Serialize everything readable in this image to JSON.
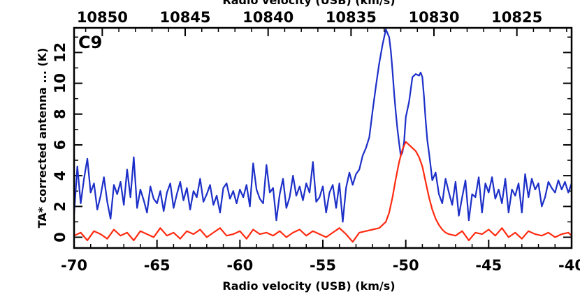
{
  "chart_data": {
    "type": "line",
    "panel_label": "C9",
    "xlabel": "Radio velocity (USB) (km/s)",
    "top_xlabel": "Radio velocity (USB) (km/s)",
    "ylabel": "TA*  corrected antenna ... (K)",
    "xlim": [
      -70,
      -40
    ],
    "ylim": [
      -0.7,
      13.6
    ],
    "x_ticks": [
      -70,
      -65,
      -60,
      -55,
      -50,
      -45,
      -40
    ],
    "x_tick_labels": [
      "-70",
      "-65",
      "-60",
      "-55",
      "-50",
      "-45",
      "-40"
    ],
    "y_ticks": [
      0,
      2,
      4,
      6,
      8,
      10,
      12
    ],
    "y_tick_labels": [
      "0",
      "2",
      "4",
      "6",
      "8",
      "10",
      "12"
    ],
    "top_ticks": [
      10850,
      10845,
      10840,
      10835,
      10830,
      10825
    ],
    "top_tick_labels": [
      "10850",
      "10845",
      "10840",
      "10835",
      "10830",
      "10825"
    ],
    "top_axis": {
      "ref_velocity": -50,
      "ref_value": 10831.7,
      "per_velocity": -1
    },
    "series": [
      {
        "name": "blue",
        "color": "#1c2fc8",
        "x": [
          -70.0,
          -69.8,
          -69.6,
          -69.4,
          -69.2,
          -69.0,
          -68.8,
          -68.6,
          -68.4,
          -68.2,
          -68.0,
          -67.8,
          -67.6,
          -67.4,
          -67.2,
          -67.0,
          -66.8,
          -66.6,
          -66.4,
          -66.2,
          -66.0,
          -65.8,
          -65.6,
          -65.4,
          -65.2,
          -65.0,
          -64.8,
          -64.6,
          -64.4,
          -64.2,
          -64.0,
          -63.8,
          -63.6,
          -63.4,
          -63.2,
          -63.0,
          -62.8,
          -62.6,
          -62.4,
          -62.2,
          -62.0,
          -61.8,
          -61.6,
          -61.4,
          -61.2,
          -61.0,
          -60.8,
          -60.6,
          -60.4,
          -60.2,
          -60.0,
          -59.8,
          -59.6,
          -59.4,
          -59.2,
          -59.0,
          -58.8,
          -58.6,
          -58.4,
          -58.2,
          -58.0,
          -57.8,
          -57.6,
          -57.4,
          -57.2,
          -57.0,
          -56.8,
          -56.6,
          -56.4,
          -56.2,
          -56.0,
          -55.8,
          -55.6,
          -55.4,
          -55.2,
          -55.0,
          -54.8,
          -54.6,
          -54.4,
          -54.2,
          -54.0,
          -53.8,
          -53.6,
          -53.4,
          -53.2,
          -53.0,
          -52.8,
          -52.6,
          -52.4,
          -52.2,
          -52.0,
          -51.8,
          -51.6,
          -51.4,
          -51.2,
          -51.0,
          -50.9,
          -50.8,
          -50.7,
          -50.6,
          -50.5,
          -50.4,
          -50.3,
          -50.2,
          -50.1,
          -50.0,
          -49.8,
          -49.6,
          -49.4,
          -49.2,
          -49.1,
          -49.0,
          -48.9,
          -48.8,
          -48.7,
          -48.6,
          -48.5,
          -48.4,
          -48.2,
          -48.0,
          -47.8,
          -47.6,
          -47.4,
          -47.2,
          -47.0,
          -46.8,
          -46.6,
          -46.4,
          -46.2,
          -46.0,
          -45.8,
          -45.6,
          -45.4,
          -45.2,
          -45.0,
          -44.8,
          -44.6,
          -44.4,
          -44.2,
          -44.0,
          -43.8,
          -43.6,
          -43.4,
          -43.2,
          -43.0,
          -42.8,
          -42.6,
          -42.4,
          -42.2,
          -42.0,
          -41.8,
          -41.6,
          -41.4,
          -41.2,
          -41.0,
          -40.8,
          -40.6,
          -40.4,
          -40.2,
          -40.0
        ],
        "y": [
          1.5,
          4.6,
          2.2,
          3.8,
          5.1,
          2.9,
          3.5,
          1.8,
          2.7,
          3.9,
          2.3,
          1.2,
          3.4,
          2.8,
          3.6,
          2.1,
          4.4,
          2.6,
          5.2,
          1.9,
          3.1,
          2.4,
          1.6,
          3.3,
          2.5,
          2.2,
          3.0,
          1.7,
          2.9,
          3.5,
          1.9,
          2.8,
          3.6,
          2.4,
          3.2,
          1.8,
          3.0,
          2.6,
          3.8,
          2.3,
          2.8,
          3.4,
          2.1,
          2.7,
          1.6,
          3.2,
          3.5,
          2.5,
          3.0,
          2.2,
          3.1,
          2.6,
          3.4,
          2.0,
          4.8,
          3.1,
          2.5,
          2.2,
          4.7,
          2.9,
          3.2,
          1.1,
          2.8,
          3.8,
          1.9,
          2.6,
          4.0,
          2.7,
          3.3,
          2.4,
          3.5,
          2.9,
          4.9,
          2.3,
          2.6,
          3.3,
          1.6,
          2.9,
          3.4,
          1.9,
          3.5,
          1.0,
          3.2,
          4.2,
          3.4,
          4.1,
          4.4,
          5.3,
          5.8,
          6.5,
          8.2,
          9.8,
          11.3,
          12.5,
          13.5,
          13.0,
          12.1,
          10.8,
          9.3,
          8.1,
          7.0,
          6.1,
          5.3,
          5.5,
          6.2,
          7.8,
          8.8,
          10.4,
          10.6,
          10.5,
          10.7,
          10.4,
          9.1,
          7.6,
          6.3,
          5.5,
          4.6,
          3.7,
          4.2,
          2.8,
          2.2,
          3.8,
          2.9,
          2.1,
          3.6,
          1.4,
          2.6,
          3.7,
          1.1,
          2.8,
          2.6,
          3.9,
          1.6,
          3.5,
          2.9,
          3.9,
          2.5,
          3.1,
          2.2,
          3.8,
          1.6,
          3.1,
          2.7,
          3.5,
          1.6,
          4.1,
          2.6,
          3.8,
          3.1,
          3.5,
          2.0,
          2.6,
          3.6,
          3.2,
          2.9,
          3.7,
          3.1,
          3.6,
          2.9,
          3.5
        ]
      },
      {
        "name": "red",
        "color": "#ff2a10",
        "x": [
          -70.0,
          -69.6,
          -69.2,
          -68.8,
          -68.4,
          -68.0,
          -67.6,
          -67.2,
          -66.8,
          -66.4,
          -66.0,
          -65.6,
          -65.2,
          -64.8,
          -64.4,
          -64.0,
          -63.6,
          -63.2,
          -62.8,
          -62.4,
          -62.0,
          -61.6,
          -61.2,
          -60.8,
          -60.4,
          -60.0,
          -59.6,
          -59.2,
          -58.8,
          -58.4,
          -58.0,
          -57.6,
          -57.2,
          -56.8,
          -56.4,
          -56.0,
          -55.6,
          -55.2,
          -54.8,
          -54.4,
          -54.0,
          -53.6,
          -53.2,
          -52.8,
          -52.4,
          -52.0,
          -51.6,
          -51.2,
          -51.0,
          -50.8,
          -50.6,
          -50.4,
          -50.2,
          -50.0,
          -49.8,
          -49.6,
          -49.4,
          -49.2,
          -49.0,
          -48.8,
          -48.6,
          -48.4,
          -48.2,
          -48.0,
          -47.8,
          -47.6,
          -47.4,
          -47.0,
          -46.6,
          -46.2,
          -45.8,
          -45.4,
          -45.0,
          -44.6,
          -44.2,
          -43.8,
          -43.4,
          -43.0,
          -42.6,
          -42.2,
          -41.8,
          -41.4,
          -41.0,
          -40.6,
          -40.2,
          -40.0
        ],
        "y": [
          0.1,
          0.3,
          -0.2,
          0.4,
          0.2,
          -0.1,
          0.5,
          0.1,
          0.3,
          -0.2,
          0.4,
          0.2,
          0.0,
          0.6,
          0.1,
          0.3,
          -0.1,
          0.4,
          0.2,
          0.5,
          0.0,
          0.3,
          0.6,
          0.1,
          0.2,
          0.4,
          -0.1,
          0.5,
          0.2,
          0.3,
          0.1,
          0.4,
          0.0,
          0.3,
          0.5,
          0.1,
          0.4,
          0.2,
          0.0,
          0.3,
          0.6,
          0.2,
          -0.3,
          0.3,
          0.4,
          0.5,
          0.6,
          1.0,
          1.6,
          2.6,
          3.8,
          4.9,
          5.7,
          6.2,
          6.0,
          5.8,
          5.6,
          5.2,
          4.6,
          3.6,
          2.6,
          1.8,
          1.2,
          0.8,
          0.5,
          0.3,
          0.2,
          0.1,
          0.4,
          -0.2,
          0.3,
          0.2,
          0.5,
          0.1,
          0.6,
          0.0,
          0.3,
          -0.1,
          0.4,
          0.2,
          0.1,
          0.3,
          0.0,
          0.2,
          0.3,
          0.1
        ]
      }
    ]
  }
}
